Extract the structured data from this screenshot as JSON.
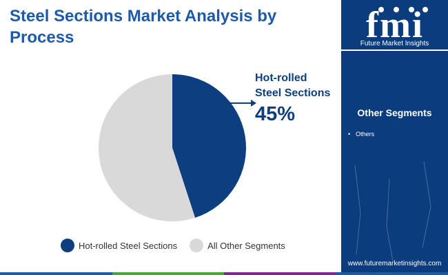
{
  "title": "Steel Sections Market Analysis by Process",
  "callout": {
    "label_line1": "Hot-rolled",
    "label_line2": "Steel Sections",
    "value": "45%"
  },
  "legend": [
    {
      "label": "Hot-rolled Steel Sections",
      "color": "#0d3f80"
    },
    {
      "label": "All Other Segments",
      "color": "#d9d9d9"
    }
  ],
  "sidebar": {
    "logo_text": "fmi",
    "logo_subtitle": "Future Market Insights",
    "segments_title": "Other Segments",
    "segments": [
      "Others"
    ],
    "url": "www.futuremarketinsights.com"
  },
  "colors": {
    "primary": "#0d3f80",
    "other": "#d9d9d9",
    "sidebar": "#0b3c7e",
    "bar": [
      "#1e5aa8",
      "#4aa33e",
      "#7a2a8c",
      "#1e5aa8"
    ]
  },
  "chart_data": {
    "type": "pie",
    "categories": [
      "Hot-rolled Steel Sections",
      "All Other Segments"
    ],
    "values": [
      45,
      55
    ],
    "title": "Steel Sections Market Analysis by Process",
    "legend_position": "bottom"
  }
}
